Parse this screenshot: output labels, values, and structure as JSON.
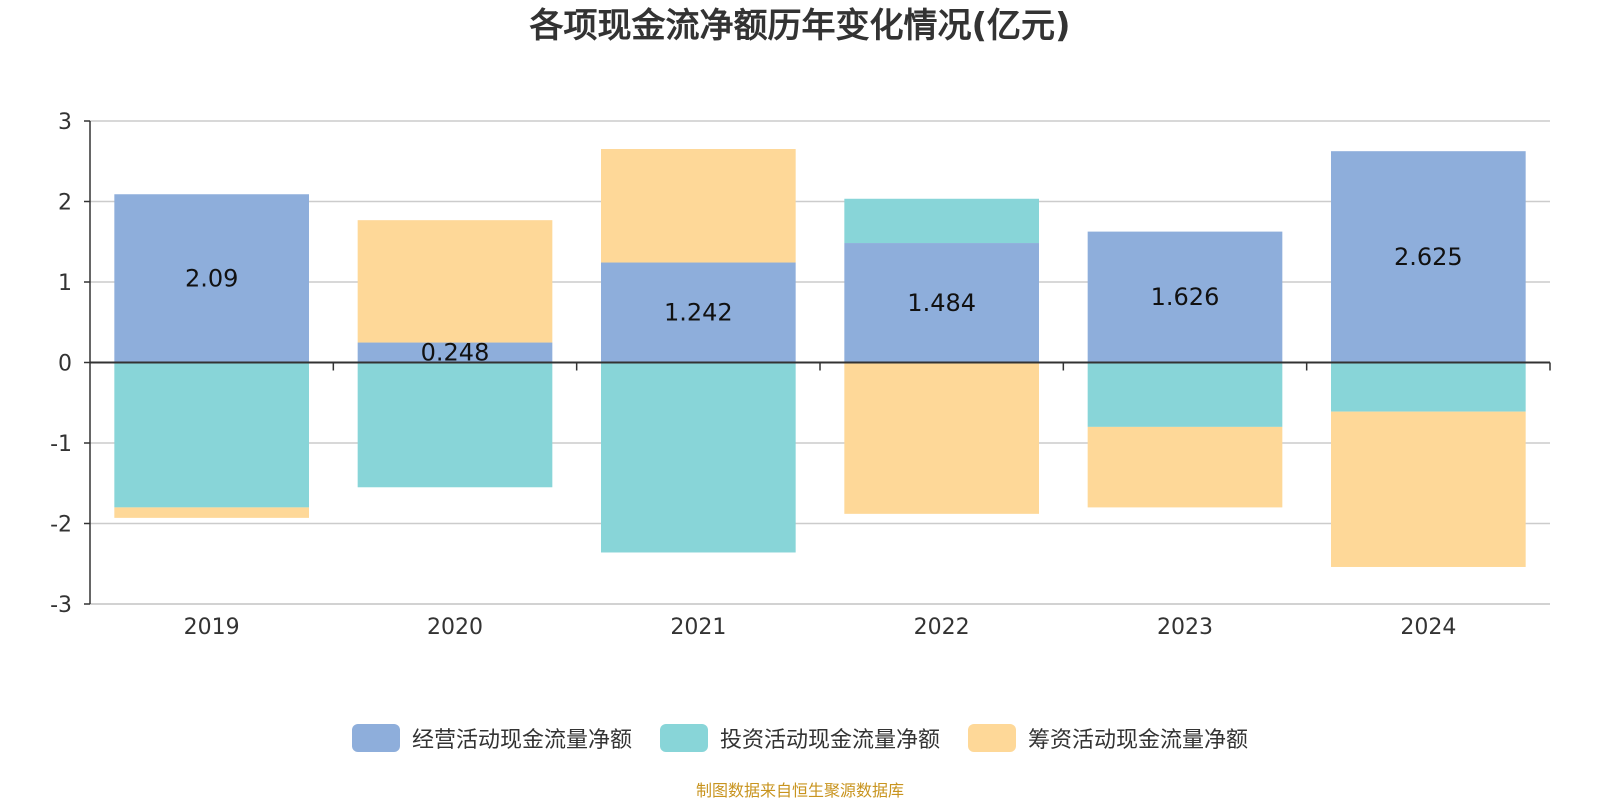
{
  "chart_data": {
    "type": "bar",
    "stacked": true,
    "title": "各项现金流净额历年变化情况(亿元)",
    "categories": [
      "2019",
      "2020",
      "2021",
      "2022",
      "2023",
      "2024"
    ],
    "ylim": [
      -3,
      3
    ],
    "yticks": [
      "3",
      "2",
      "1",
      "0",
      "-1",
      "-2",
      "-3"
    ],
    "grid": true,
    "legend_position": "bottom",
    "series": [
      {
        "name": "经营活动现金流量净额",
        "color": "#8eaedb",
        "values": [
          2.09,
          0.248,
          1.242,
          1.484,
          1.626,
          2.625
        ],
        "labels": [
          "2.09",
          "0.248",
          "1.242",
          "1.484",
          "1.626",
          "2.625"
        ]
      },
      {
        "name": "投资活动现金流量净额",
        "color": "#88d5d8",
        "values": [
          -1.8,
          -1.55,
          -2.36,
          0.55,
          -0.8,
          -0.61
        ]
      },
      {
        "name": "筹资活动现金流量净额",
        "color": "#fed898",
        "values": [
          -0.13,
          1.52,
          1.41,
          -1.88,
          -1.0,
          -1.93
        ]
      }
    ]
  },
  "source_note": "制图数据来自恒生聚源数据库"
}
